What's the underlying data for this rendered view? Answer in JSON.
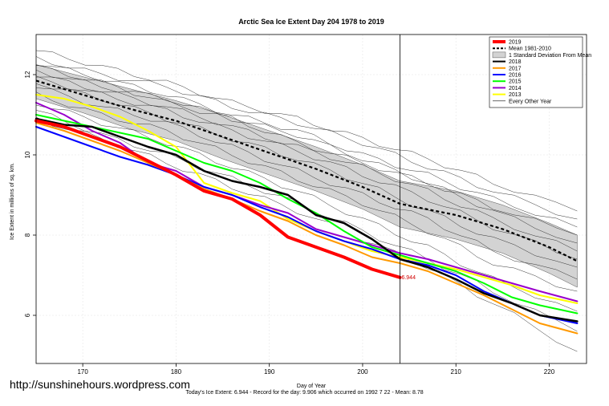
{
  "watermark": "http://sunshinehours.wordpress.com",
  "footer": "Today's Ice Extent: 6.944  - Record for the day: 9.906 which occurred on 1992 7 22  - Mean: 8.78",
  "chart_data": {
    "type": "line",
    "title": "Arctic Sea Ice Extent Day 204 1978 to 2019",
    "xlabel": "Day of Year",
    "ylabel": "Ice Extent in millions of sq. km.",
    "xlim": [
      165,
      224
    ],
    "ylim": [
      4.8,
      13.0
    ],
    "xticks": [
      170,
      180,
      190,
      200,
      210,
      220
    ],
    "yticks": [
      6,
      8,
      10,
      12
    ],
    "grid": true,
    "legend_position": "top-right",
    "vline_x": 204,
    "annotation": {
      "x": 204,
      "y": 6.944,
      "text": "6.944"
    },
    "mean": {
      "name": "Mean 1981-2010",
      "color": "#000000",
      "x": [
        165,
        170,
        175,
        180,
        185,
        190,
        195,
        200,
        204,
        210,
        215,
        220,
        223
      ],
      "y": [
        11.85,
        11.5,
        11.15,
        10.85,
        10.45,
        10.05,
        9.65,
        9.2,
        8.78,
        8.5,
        8.15,
        7.7,
        7.35
      ]
    },
    "std_band": {
      "name": "1 Standard Deviation From Mean",
      "color": "#d3d3d3",
      "x": [
        165,
        170,
        175,
        180,
        185,
        190,
        195,
        200,
        204,
        210,
        215,
        220,
        223
      ],
      "upper": [
        12.25,
        11.95,
        11.65,
        11.35,
        11.0,
        10.6,
        10.2,
        9.75,
        9.35,
        9.1,
        8.75,
        8.3,
        8.0
      ],
      "lower": [
        11.4,
        11.05,
        10.65,
        10.35,
        9.9,
        9.5,
        9.1,
        8.65,
        8.2,
        7.9,
        7.55,
        7.05,
        6.7
      ]
    },
    "series": [
      {
        "name": "2019",
        "color": "#ff0000",
        "width": 4,
        "x": [
          165,
          168,
          171,
          174,
          177,
          180,
          183,
          186,
          189,
          192,
          195,
          198,
          201,
          204
        ],
        "y": [
          10.85,
          10.7,
          10.45,
          10.2,
          9.85,
          9.5,
          9.1,
          8.9,
          8.5,
          7.95,
          7.7,
          7.45,
          7.15,
          6.944
        ]
      },
      {
        "name": "2018",
        "color": "#000000",
        "width": 2.5,
        "x": [
          165,
          168,
          171,
          174,
          177,
          180,
          183,
          186,
          189,
          192,
          195,
          198,
          201,
          204,
          207,
          210,
          213,
          216,
          219,
          223
        ],
        "y": [
          10.9,
          10.75,
          10.7,
          10.45,
          10.2,
          10.0,
          9.6,
          9.35,
          9.2,
          9.0,
          8.5,
          8.3,
          7.9,
          7.4,
          7.2,
          6.9,
          6.55,
          6.3,
          6.0,
          5.85
        ]
      },
      {
        "name": "2017",
        "color": "#ff9900",
        "width": 2,
        "x": [
          165,
          168,
          171,
          174,
          177,
          180,
          183,
          186,
          189,
          192,
          195,
          198,
          201,
          204,
          207,
          210,
          213,
          216,
          219,
          223
        ],
        "y": [
          10.8,
          10.6,
          10.35,
          10.1,
          9.8,
          9.5,
          9.15,
          8.9,
          8.6,
          8.35,
          8.0,
          7.75,
          7.45,
          7.3,
          7.1,
          6.8,
          6.5,
          6.15,
          5.8,
          5.55
        ]
      },
      {
        "name": "2016",
        "color": "#0000ff",
        "width": 2,
        "x": [
          165,
          168,
          171,
          174,
          177,
          180,
          183,
          186,
          189,
          192,
          195,
          198,
          201,
          204,
          207,
          210,
          213,
          216,
          219,
          223
        ],
        "y": [
          10.7,
          10.45,
          10.2,
          9.95,
          9.75,
          9.5,
          9.2,
          9.0,
          8.7,
          8.45,
          8.1,
          7.85,
          7.65,
          7.4,
          7.25,
          7.0,
          6.6,
          6.3,
          6.0,
          5.8
        ]
      },
      {
        "name": "2015",
        "color": "#00ff00",
        "width": 2,
        "x": [
          165,
          168,
          171,
          174,
          177,
          180,
          183,
          186,
          189,
          192,
          195,
          198,
          201,
          204,
          207,
          210,
          213,
          216,
          219,
          223
        ],
        "y": [
          11.0,
          10.85,
          10.7,
          10.55,
          10.4,
          10.1,
          9.8,
          9.6,
          9.3,
          8.9,
          8.55,
          8.1,
          7.7,
          7.5,
          7.3,
          7.1,
          6.8,
          6.45,
          6.25,
          6.05
        ]
      },
      {
        "name": "2014",
        "color": "#9900cc",
        "width": 2,
        "x": [
          165,
          168,
          171,
          174,
          177,
          180,
          183,
          186,
          189,
          192,
          195,
          198,
          201,
          204,
          207,
          210,
          213,
          216,
          219,
          223
        ],
        "y": [
          11.3,
          11.0,
          10.6,
          10.3,
          9.8,
          9.6,
          9.2,
          9.0,
          8.75,
          8.55,
          8.15,
          7.95,
          7.75,
          7.55,
          7.4,
          7.2,
          7.0,
          6.8,
          6.6,
          6.35
        ]
      },
      {
        "name": "2013",
        "color": "#ffff00",
        "width": 2,
        "x": [
          165,
          168,
          171,
          174,
          177,
          180,
          183,
          186,
          189,
          192,
          195,
          198,
          201,
          204,
          207,
          210,
          213,
          216,
          219,
          223
        ],
        "y": [
          11.5,
          11.4,
          11.2,
          10.95,
          10.6,
          10.2,
          9.3,
          9.05,
          8.85,
          8.4,
          8.1,
          7.85,
          7.6,
          7.45,
          7.3,
          7.15,
          6.95,
          6.75,
          6.5,
          6.3
        ]
      }
    ],
    "legend": [
      {
        "label": "2019",
        "color": "#ff0000",
        "style": "thick"
      },
      {
        "label": "Mean 1981-2010",
        "color": "#000000",
        "style": "dashed"
      },
      {
        "label": "1 Standard Deviation From Mean",
        "color": "#d3d3d3",
        "style": "band"
      },
      {
        "label": "2018",
        "color": "#000000",
        "style": "line"
      },
      {
        "label": "2017",
        "color": "#ff9900",
        "style": "line"
      },
      {
        "label": "2016",
        "color": "#0000ff",
        "style": "line"
      },
      {
        "label": "2015",
        "color": "#00ff00",
        "style": "line"
      },
      {
        "label": "2014",
        "color": "#9900cc",
        "style": "line"
      },
      {
        "label": "2013",
        "color": "#ffff00",
        "style": "line"
      },
      {
        "label": "Every Other Year",
        "color": "#000000",
        "style": "thin"
      }
    ],
    "other_years_note": "Every Other Year",
    "other_years": {
      "x": [
        165,
        172,
        179,
        186,
        193,
        200,
        207,
        214,
        223
      ],
      "y_sets": [
        [
          12.6,
          12.2,
          11.8,
          11.3,
          10.9,
          10.4,
          9.9,
          9.3,
          8.6
        ],
        [
          12.4,
          12.0,
          11.7,
          11.2,
          10.8,
          10.3,
          9.7,
          9.1,
          8.4
        ],
        [
          12.3,
          11.9,
          11.5,
          11.0,
          10.6,
          10.0,
          9.5,
          8.9,
          8.2
        ],
        [
          12.2,
          11.8,
          11.3,
          10.9,
          10.3,
          9.8,
          9.3,
          8.7,
          8.0
        ],
        [
          12.1,
          11.7,
          11.4,
          10.9,
          10.5,
          9.9,
          9.3,
          8.6,
          7.8
        ],
        [
          12.0,
          11.6,
          11.2,
          10.7,
          10.2,
          9.7,
          9.1,
          8.4,
          7.6
        ],
        [
          11.9,
          11.5,
          11.1,
          10.6,
          10.1,
          9.5,
          8.9,
          8.2,
          7.4
        ],
        [
          11.8,
          11.4,
          10.9,
          10.4,
          9.9,
          9.3,
          8.6,
          7.9,
          7.2
        ],
        [
          11.7,
          11.2,
          10.8,
          10.2,
          9.6,
          9.0,
          8.4,
          7.6,
          6.9
        ],
        [
          11.5,
          11.0,
          10.6,
          10.0,
          9.4,
          8.8,
          8.1,
          7.3,
          6.6
        ],
        [
          11.3,
          10.8,
          10.3,
          9.7,
          9.1,
          8.4,
          7.7,
          6.9,
          6.1
        ],
        [
          11.1,
          10.5,
          10.0,
          9.4,
          8.8,
          8.1,
          7.4,
          6.6,
          5.6
        ],
        [
          10.9,
          10.4,
          9.8,
          9.2,
          8.6,
          7.9,
          7.2,
          6.3,
          5.1
        ]
      ]
    }
  }
}
